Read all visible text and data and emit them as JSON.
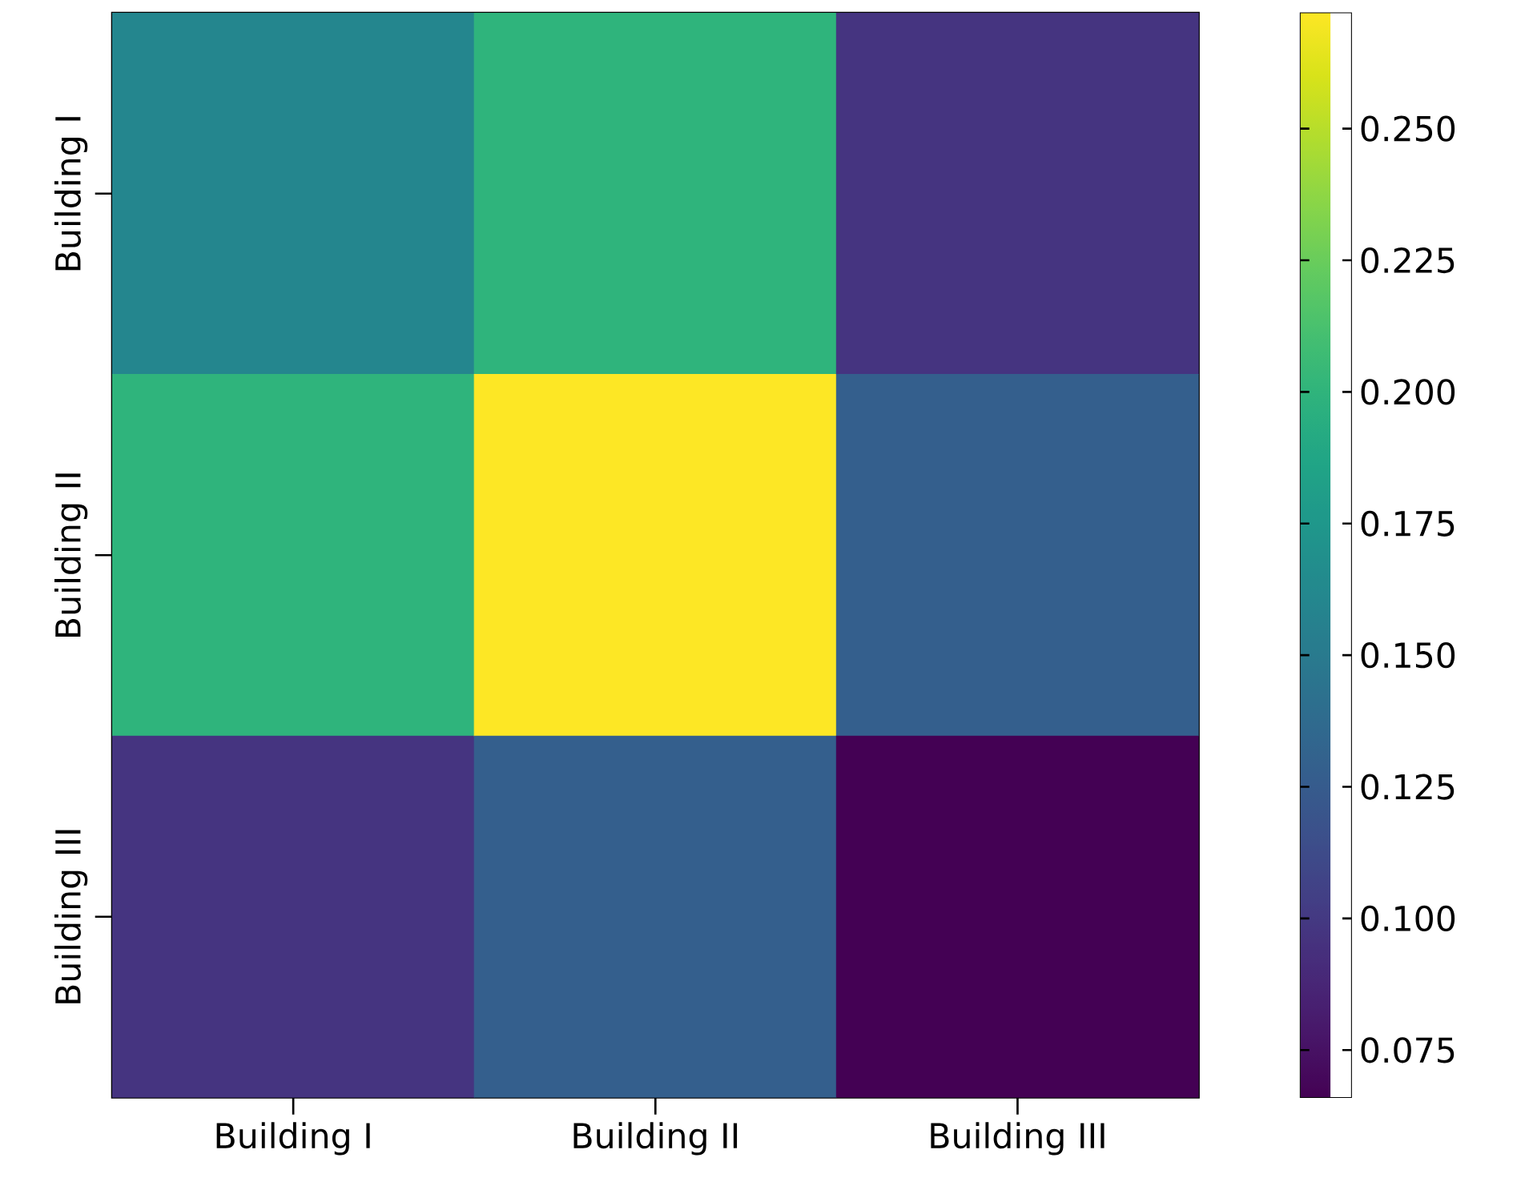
{
  "chart_data": {
    "type": "heatmap",
    "categories": [
      "Building I",
      "Building II",
      "Building III"
    ],
    "y_categories": [
      "Building I",
      "Building II",
      "Building III"
    ],
    "cells": [
      [
        0.16,
        0.2,
        0.097
      ],
      [
        0.2,
        0.272,
        0.128
      ],
      [
        0.097,
        0.128,
        0.066
      ]
    ],
    "clim": [
      0.066,
      0.272
    ],
    "cticks": [
      {
        "value": 0.075,
        "label": "0.075"
      },
      {
        "value": 0.1,
        "label": "0.100"
      },
      {
        "value": 0.125,
        "label": "0.125"
      },
      {
        "value": 0.15,
        "label": "0.150"
      },
      {
        "value": 0.175,
        "label": "0.175"
      },
      {
        "value": 0.2,
        "label": "0.200"
      },
      {
        "value": 0.225,
        "label": "0.225"
      },
      {
        "value": 0.25,
        "label": "0.250"
      }
    ]
  }
}
